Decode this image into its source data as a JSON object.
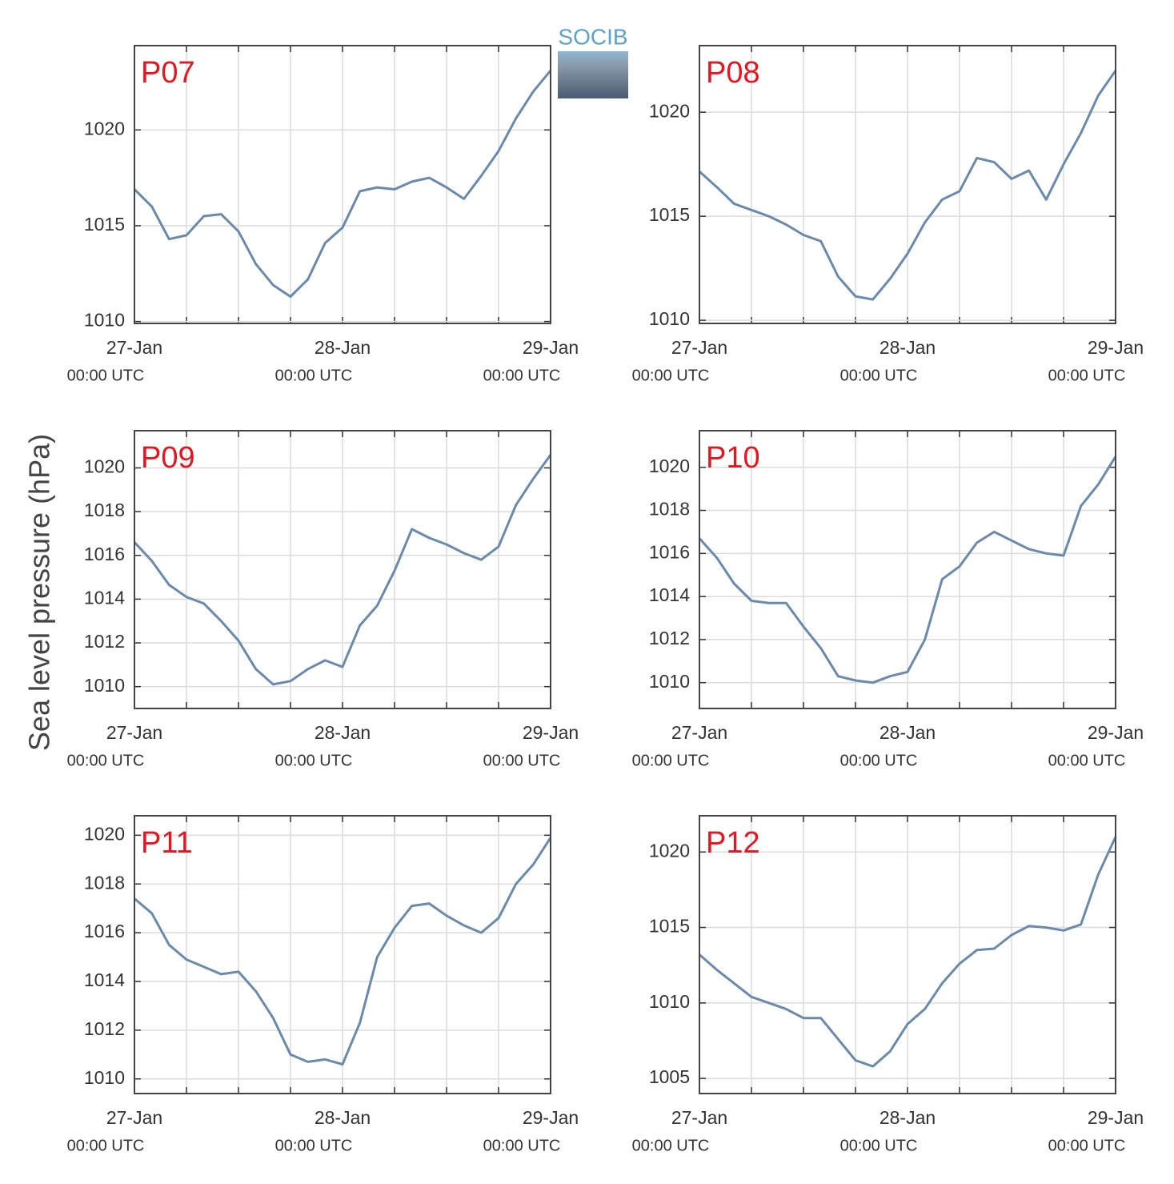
{
  "ylabel": "Sea level pressure (hPa)",
  "logo": "SOCIB",
  "chart_data": [
    {
      "type": "line",
      "title": "P07",
      "color": "#6a8aad",
      "grid": true,
      "x": [
        "27-Jan 00:00",
        "27-Jan 02:00",
        "27-Jan 04:00",
        "27-Jan 06:00",
        "27-Jan 08:00",
        "27-Jan 10:00",
        "27-Jan 12:00",
        "27-Jan 14:00",
        "27-Jan 16:00",
        "27-Jan 18:00",
        "27-Jan 20:00",
        "27-Jan 22:00",
        "28-Jan 00:00",
        "28-Jan 02:00",
        "28-Jan 04:00",
        "28-Jan 06:00",
        "28-Jan 08:00",
        "28-Jan 10:00",
        "28-Jan 12:00",
        "28-Jan 14:00",
        "28-Jan 16:00",
        "28-Jan 18:00",
        "28-Jan 20:00",
        "28-Jan 22:00",
        "29-Jan 00:00"
      ],
      "values": [
        1016.9,
        1016.0,
        1014.3,
        1014.5,
        1015.5,
        1015.6,
        1014.7,
        1013.0,
        1011.9,
        1011.3,
        1012.2,
        1014.1,
        1014.9,
        1016.8,
        1017.0,
        1016.9,
        1017.3,
        1017.5,
        1017.0,
        1016.4,
        1017.6,
        1018.9,
        1020.6,
        1022.0,
        1023.1
      ],
      "xlim": [
        "27-Jan 00:00",
        "29-Jan 00:00"
      ],
      "xticks": [
        {
          "value": "27-Jan 00:00",
          "label": [
            "27-Jan",
            "00:00 UTC"
          ]
        },
        {
          "value": "27-Jan 06:00",
          "label": null
        },
        {
          "value": "27-Jan 12:00",
          "label": null
        },
        {
          "value": "27-Jan 18:00",
          "label": null
        },
        {
          "value": "28-Jan 00:00",
          "label": [
            "28-Jan",
            "00:00 UTC"
          ]
        },
        {
          "value": "28-Jan 06:00",
          "label": null
        },
        {
          "value": "28-Jan 12:00",
          "label": null
        },
        {
          "value": "28-Jan 18:00",
          "label": null
        },
        {
          "value": "29-Jan 00:00",
          "label": [
            "29-Jan",
            "00:00 UTC"
          ]
        }
      ],
      "ylim": [
        1009.9,
        1024.4
      ],
      "yticks": [
        1010,
        1015,
        1020
      ]
    },
    {
      "type": "line",
      "title": "P08",
      "color": "#6a8aad",
      "grid": true,
      "x": [
        "27-Jan 00:00",
        "27-Jan 02:00",
        "27-Jan 04:00",
        "27-Jan 06:00",
        "27-Jan 08:00",
        "27-Jan 10:00",
        "27-Jan 12:00",
        "27-Jan 14:00",
        "27-Jan 16:00",
        "27-Jan 18:00",
        "27-Jan 20:00",
        "27-Jan 22:00",
        "28-Jan 00:00",
        "28-Jan 02:00",
        "28-Jan 04:00",
        "28-Jan 06:00",
        "28-Jan 08:00",
        "28-Jan 10:00",
        "28-Jan 12:00",
        "28-Jan 14:00",
        "28-Jan 16:00",
        "28-Jan 18:00",
        "28-Jan 20:00",
        "28-Jan 22:00",
        "29-Jan 00:00"
      ],
      "values": [
        1017.15,
        1016.4,
        1015.6,
        1015.3,
        1015.0,
        1014.6,
        1014.1,
        1013.8,
        1012.1,
        1011.15,
        1011.0,
        1012.0,
        1013.2,
        1014.7,
        1015.8,
        1016.2,
        1017.8,
        1017.6,
        1016.8,
        1017.2,
        1015.8,
        1017.5,
        1019.0,
        1020.8,
        1022.0
      ],
      "xlim": [
        "27-Jan 00:00",
        "29-Jan 00:00"
      ],
      "xticks": [
        {
          "value": "27-Jan 00:00",
          "label": [
            "27-Jan",
            "00:00 UTC"
          ]
        },
        {
          "value": "27-Jan 06:00",
          "label": null
        },
        {
          "value": "27-Jan 12:00",
          "label": null
        },
        {
          "value": "27-Jan 18:00",
          "label": null
        },
        {
          "value": "28-Jan 00:00",
          "label": [
            "28-Jan",
            "00:00 UTC"
          ]
        },
        {
          "value": "28-Jan 06:00",
          "label": null
        },
        {
          "value": "28-Jan 12:00",
          "label": null
        },
        {
          "value": "28-Jan 18:00",
          "label": null
        },
        {
          "value": "29-Jan 00:00",
          "label": [
            "29-Jan",
            "00:00 UTC"
          ]
        }
      ],
      "ylim": [
        1009.85,
        1023.2
      ],
      "yticks": [
        1010,
        1015,
        1020
      ]
    },
    {
      "type": "line",
      "title": "P09",
      "color": "#6a8aad",
      "grid": true,
      "x": [
        "27-Jan 00:00",
        "27-Jan 02:00",
        "27-Jan 04:00",
        "27-Jan 06:00",
        "27-Jan 08:00",
        "27-Jan 10:00",
        "27-Jan 12:00",
        "27-Jan 14:00",
        "27-Jan 16:00",
        "27-Jan 18:00",
        "27-Jan 20:00",
        "27-Jan 22:00",
        "28-Jan 00:00",
        "28-Jan 02:00",
        "28-Jan 04:00",
        "28-Jan 06:00",
        "28-Jan 08:00",
        "28-Jan 10:00",
        "28-Jan 12:00",
        "28-Jan 14:00",
        "28-Jan 16:00",
        "28-Jan 18:00",
        "28-Jan 20:00",
        "28-Jan 22:00",
        "29-Jan 00:00"
      ],
      "values": [
        1016.6,
        1015.75,
        1014.65,
        1014.1,
        1013.8,
        1013.0,
        1012.1,
        1010.8,
        1010.1,
        1010.25,
        1010.8,
        1011.2,
        1010.9,
        1012.8,
        1013.7,
        1015.3,
        1017.2,
        1016.8,
        1016.5,
        1016.1,
        1015.8,
        1016.4,
        1018.3,
        1019.5,
        1020.6
      ],
      "xlim": [
        "27-Jan 00:00",
        "29-Jan 00:00"
      ],
      "xticks": [
        {
          "value": "27-Jan 00:00",
          "label": [
            "27-Jan",
            "00:00 UTC"
          ]
        },
        {
          "value": "27-Jan 06:00",
          "label": null
        },
        {
          "value": "27-Jan 12:00",
          "label": null
        },
        {
          "value": "27-Jan 18:00",
          "label": null
        },
        {
          "value": "28-Jan 00:00",
          "label": [
            "28-Jan",
            "00:00 UTC"
          ]
        },
        {
          "value": "28-Jan 06:00",
          "label": null
        },
        {
          "value": "28-Jan 12:00",
          "label": null
        },
        {
          "value": "28-Jan 18:00",
          "label": null
        },
        {
          "value": "29-Jan 00:00",
          "label": [
            "29-Jan",
            "00:00 UTC"
          ]
        }
      ],
      "ylim": [
        1009.0,
        1021.7
      ],
      "yticks": [
        1010,
        1012,
        1014,
        1016,
        1018,
        1020
      ]
    },
    {
      "type": "line",
      "title": "P10",
      "color": "#6a8aad",
      "grid": true,
      "x": [
        "27-Jan 00:00",
        "27-Jan 02:00",
        "27-Jan 04:00",
        "27-Jan 06:00",
        "27-Jan 08:00",
        "27-Jan 10:00",
        "27-Jan 12:00",
        "27-Jan 14:00",
        "27-Jan 16:00",
        "27-Jan 18:00",
        "27-Jan 20:00",
        "27-Jan 22:00",
        "28-Jan 00:00",
        "28-Jan 02:00",
        "28-Jan 04:00",
        "28-Jan 06:00",
        "28-Jan 08:00",
        "28-Jan 10:00",
        "28-Jan 12:00",
        "28-Jan 14:00",
        "28-Jan 16:00",
        "28-Jan 18:00",
        "28-Jan 20:00",
        "28-Jan 22:00",
        "29-Jan 00:00"
      ],
      "values": [
        1016.7,
        1015.8,
        1014.6,
        1013.8,
        1013.7,
        1013.7,
        1012.6,
        1011.6,
        1010.3,
        1010.1,
        1010.0,
        1010.3,
        1010.5,
        1012.0,
        1014.8,
        1015.4,
        1016.5,
        1017.0,
        1016.6,
        1016.2,
        1016.0,
        1015.9,
        1018.2,
        1019.2,
        1020.5
      ],
      "xlim": [
        "27-Jan 00:00",
        "29-Jan 00:00"
      ],
      "xticks": [
        {
          "value": "27-Jan 00:00",
          "label": [
            "27-Jan",
            "00:00 UTC"
          ]
        },
        {
          "value": "27-Jan 06:00",
          "label": null
        },
        {
          "value": "27-Jan 12:00",
          "label": null
        },
        {
          "value": "27-Jan 18:00",
          "label": null
        },
        {
          "value": "28-Jan 00:00",
          "label": [
            "28-Jan",
            "00:00 UTC"
          ]
        },
        {
          "value": "28-Jan 06:00",
          "label": null
        },
        {
          "value": "28-Jan 12:00",
          "label": null
        },
        {
          "value": "28-Jan 18:00",
          "label": null
        },
        {
          "value": "29-Jan 00:00",
          "label": [
            "29-Jan",
            "00:00 UTC"
          ]
        }
      ],
      "ylim": [
        1008.8,
        1021.7
      ],
      "yticks": [
        1010,
        1012,
        1014,
        1016,
        1018,
        1020
      ]
    },
    {
      "type": "line",
      "title": "P11",
      "color": "#6a8aad",
      "grid": true,
      "x": [
        "27-Jan 00:00",
        "27-Jan 02:00",
        "27-Jan 04:00",
        "27-Jan 06:00",
        "27-Jan 08:00",
        "27-Jan 10:00",
        "27-Jan 12:00",
        "27-Jan 14:00",
        "27-Jan 16:00",
        "27-Jan 18:00",
        "27-Jan 20:00",
        "27-Jan 22:00",
        "28-Jan 00:00",
        "28-Jan 02:00",
        "28-Jan 04:00",
        "28-Jan 06:00",
        "28-Jan 08:00",
        "28-Jan 10:00",
        "28-Jan 12:00",
        "28-Jan 14:00",
        "28-Jan 16:00",
        "28-Jan 18:00",
        "28-Jan 20:00",
        "28-Jan 22:00",
        "29-Jan 00:00"
      ],
      "values": [
        1017.4,
        1016.8,
        1015.5,
        1014.9,
        1014.6,
        1014.3,
        1014.4,
        1013.6,
        1012.5,
        1011.0,
        1010.7,
        1010.8,
        1010.6,
        1012.3,
        1015.0,
        1016.2,
        1017.1,
        1017.2,
        1016.7,
        1016.3,
        1016.0,
        1016.6,
        1018.0,
        1018.8,
        1019.9
      ],
      "xlim": [
        "27-Jan 00:00",
        "29-Jan 00:00"
      ],
      "xticks": [
        {
          "value": "27-Jan 00:00",
          "label": [
            "27-Jan",
            "00:00 UTC"
          ]
        },
        {
          "value": "27-Jan 06:00",
          "label": null
        },
        {
          "value": "27-Jan 12:00",
          "label": null
        },
        {
          "value": "27-Jan 18:00",
          "label": null
        },
        {
          "value": "28-Jan 00:00",
          "label": [
            "28-Jan",
            "00:00 UTC"
          ]
        },
        {
          "value": "28-Jan 06:00",
          "label": null
        },
        {
          "value": "28-Jan 12:00",
          "label": null
        },
        {
          "value": "28-Jan 18:00",
          "label": null
        },
        {
          "value": "29-Jan 00:00",
          "label": [
            "29-Jan",
            "00:00 UTC"
          ]
        }
      ],
      "ylim": [
        1009.4,
        1020.8
      ],
      "yticks": [
        1010,
        1012,
        1014,
        1016,
        1018,
        1020
      ]
    },
    {
      "type": "line",
      "title": "P12",
      "color": "#6a8aad",
      "grid": true,
      "x": [
        "27-Jan 00:00",
        "27-Jan 02:00",
        "27-Jan 04:00",
        "27-Jan 06:00",
        "27-Jan 08:00",
        "27-Jan 10:00",
        "27-Jan 12:00",
        "27-Jan 14:00",
        "27-Jan 16:00",
        "27-Jan 18:00",
        "27-Jan 20:00",
        "27-Jan 22:00",
        "28-Jan 00:00",
        "28-Jan 02:00",
        "28-Jan 04:00",
        "28-Jan 06:00",
        "28-Jan 08:00",
        "28-Jan 10:00",
        "28-Jan 12:00",
        "28-Jan 14:00",
        "28-Jan 16:00",
        "28-Jan 18:00",
        "28-Jan 20:00",
        "28-Jan 22:00",
        "29-Jan 00:00"
      ],
      "values": [
        1013.2,
        1012.2,
        1011.3,
        1010.4,
        1010.0,
        1009.6,
        1009.0,
        1009.0,
        1007.6,
        1006.2,
        1005.8,
        1006.8,
        1008.6,
        1009.6,
        1011.3,
        1012.6,
        1013.5,
        1013.6,
        1014.5,
        1015.1,
        1015.0,
        1014.8,
        1015.2,
        1018.5,
        1021.0
      ],
      "xlim": [
        "27-Jan 00:00",
        "29-Jan 00:00"
      ],
      "xticks": [
        {
          "value": "27-Jan 00:00",
          "label": [
            "27-Jan",
            "00:00 UTC"
          ]
        },
        {
          "value": "27-Jan 06:00",
          "label": null
        },
        {
          "value": "27-Jan 12:00",
          "label": null
        },
        {
          "value": "27-Jan 18:00",
          "label": null
        },
        {
          "value": "28-Jan 00:00",
          "label": [
            "28-Jan",
            "00:00 UTC"
          ]
        },
        {
          "value": "28-Jan 06:00",
          "label": null
        },
        {
          "value": "28-Jan 12:00",
          "label": null
        },
        {
          "value": "28-Jan 18:00",
          "label": null
        },
        {
          "value": "29-Jan 00:00",
          "label": [
            "29-Jan",
            "00:00 UTC"
          ]
        }
      ],
      "ylim": [
        1004.0,
        1022.4
      ],
      "yticks": [
        1005,
        1010,
        1015,
        1020
      ]
    }
  ]
}
